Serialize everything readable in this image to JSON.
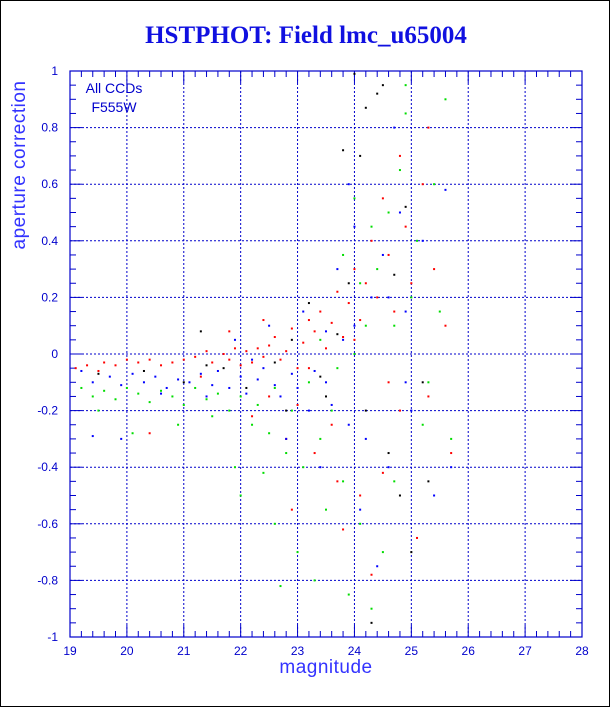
{
  "chart_data": {
    "type": "scatter",
    "title": "HSTPHOT: Field lmc_u65004",
    "xlabel": "magnitude",
    "ylabel": "aperture correction",
    "xlim": [
      19,
      28
    ],
    "ylim": [
      -1,
      1
    ],
    "x_ticks": [
      "19",
      "20",
      "21",
      "22",
      "23",
      "24",
      "25",
      "26",
      "27",
      "28"
    ],
    "y_ticks": [
      "-1",
      "-0.8",
      "-0.6",
      "-0.4",
      "-0.2",
      "0",
      "0.2",
      "0.4",
      "0.6",
      "0.8",
      "1"
    ],
    "annotation": [
      "All CCDs",
      "F555W"
    ],
    "grid": true,
    "series": [
      {
        "color": "#ff0000",
        "points": [
          [
            19.1,
            -0.05
          ],
          [
            19.3,
            -0.04
          ],
          [
            19.5,
            -0.06
          ],
          [
            19.6,
            -0.03
          ],
          [
            19.8,
            -0.04
          ],
          [
            20.0,
            -0.02
          ],
          [
            20.2,
            -0.03
          ],
          [
            20.4,
            -0.02
          ],
          [
            20.6,
            -0.04
          ],
          [
            20.8,
            -0.03
          ],
          [
            21.0,
            -0.02
          ],
          [
            21.2,
            -0.01
          ],
          [
            21.4,
            0.01
          ],
          [
            21.5,
            -0.03
          ],
          [
            21.7,
            0.0
          ],
          [
            21.8,
            -0.02
          ],
          [
            21.9,
            0.02
          ],
          [
            22.0,
            -0.04
          ],
          [
            22.1,
            0.01
          ],
          [
            22.2,
            -0.03
          ],
          [
            22.3,
            0.02
          ],
          [
            22.4,
            -0.01
          ],
          [
            22.5,
            0.03
          ],
          [
            22.6,
            0.06
          ],
          [
            22.7,
            -0.02
          ],
          [
            22.8,
            0.01
          ],
          [
            22.9,
            0.09
          ],
          [
            23.0,
            -0.05
          ],
          [
            23.1,
            0.04
          ],
          [
            23.2,
            0.12
          ],
          [
            23.3,
            0.08
          ],
          [
            23.4,
            0.15
          ],
          [
            23.5,
            0.02
          ],
          [
            23.6,
            0.11
          ],
          [
            23.7,
            0.22
          ],
          [
            23.8,
            0.06
          ],
          [
            23.9,
            0.18
          ],
          [
            24.0,
            0.3
          ],
          [
            24.1,
            0.12
          ],
          [
            24.2,
            0.25
          ],
          [
            24.3,
            0.4
          ],
          [
            24.4,
            0.2
          ],
          [
            24.5,
            0.55
          ],
          [
            24.6,
            0.35
          ],
          [
            24.7,
            0.15
          ],
          [
            24.8,
            0.7
          ],
          [
            24.9,
            0.45
          ],
          [
            25.0,
            0.25
          ],
          [
            25.2,
            0.6
          ],
          [
            25.3,
            0.8
          ],
          [
            25.4,
            0.3
          ],
          [
            25.6,
            0.1
          ],
          [
            22.2,
            -0.22
          ],
          [
            22.8,
            -0.3
          ],
          [
            23.3,
            -0.35
          ],
          [
            23.7,
            -0.45
          ],
          [
            24.1,
            -0.5
          ],
          [
            24.5,
            -0.42
          ],
          [
            23.0,
            -0.18
          ],
          [
            22.5,
            -0.15
          ],
          [
            21.3,
            -0.08
          ],
          [
            20.4,
            -0.28
          ],
          [
            21.8,
            0.08
          ],
          [
            22.4,
            0.12
          ],
          [
            23.6,
            -0.25
          ],
          [
            24.8,
            -0.2
          ],
          [
            25.1,
            -0.65
          ],
          [
            24.3,
            -0.78
          ],
          [
            23.8,
            -0.62
          ],
          [
            22.9,
            -0.55
          ],
          [
            23.2,
            -0.05
          ],
          [
            24.0,
            0.05
          ],
          [
            24.6,
            -0.1
          ],
          [
            25.3,
            -0.15
          ],
          [
            25.7,
            -0.35
          ]
        ]
      },
      {
        "color": "#0000ff",
        "points": [
          [
            19.2,
            -0.06
          ],
          [
            19.4,
            -0.1
          ],
          [
            19.7,
            -0.08
          ],
          [
            19.9,
            -0.11
          ],
          [
            20.1,
            -0.07
          ],
          [
            20.3,
            -0.1
          ],
          [
            20.5,
            -0.08
          ],
          [
            20.7,
            -0.12
          ],
          [
            20.9,
            -0.09
          ],
          [
            21.1,
            -0.1
          ],
          [
            21.3,
            -0.07
          ],
          [
            21.5,
            -0.11
          ],
          [
            21.6,
            -0.06
          ],
          [
            21.8,
            -0.12
          ],
          [
            22.0,
            -0.08
          ],
          [
            22.1,
            -0.14
          ],
          [
            22.3,
            -0.09
          ],
          [
            22.4,
            -0.05
          ],
          [
            22.6,
            -0.11
          ],
          [
            22.7,
            -0.15
          ],
          [
            22.9,
            -0.07
          ],
          [
            23.0,
            -0.12
          ],
          [
            23.2,
            -0.2
          ],
          [
            23.3,
            -0.06
          ],
          [
            23.5,
            -0.1
          ],
          [
            23.6,
            -0.18
          ],
          [
            23.8,
            0.05
          ],
          [
            23.9,
            -0.25
          ],
          [
            24.0,
            0.1
          ],
          [
            24.2,
            -0.3
          ],
          [
            24.3,
            0.2
          ],
          [
            24.5,
            0.35
          ],
          [
            24.6,
            -0.4
          ],
          [
            24.8,
            0.5
          ],
          [
            24.9,
            0.15
          ],
          [
            25.0,
            -0.2
          ],
          [
            25.2,
            0.4
          ],
          [
            25.4,
            -0.5
          ],
          [
            25.6,
            0.58
          ],
          [
            19.4,
            -0.29
          ],
          [
            19.9,
            -0.3
          ],
          [
            21.9,
            0.05
          ],
          [
            22.5,
            0.1
          ],
          [
            23.1,
            0.15
          ],
          [
            23.7,
            0.3
          ],
          [
            24.1,
            -0.55
          ],
          [
            24.4,
            -0.75
          ],
          [
            24.7,
            0.8
          ],
          [
            23.4,
            -0.4
          ],
          [
            22.8,
            -0.3
          ],
          [
            25.7,
            -0.4
          ],
          [
            21.4,
            -0.15
          ],
          [
            20.6,
            -0.14
          ],
          [
            24.0,
            0.45
          ],
          [
            23.9,
            0.6
          ],
          [
            24.9,
            -0.1
          ],
          [
            22.2,
            -0.02
          ],
          [
            23.5,
            0.08
          ],
          [
            24.6,
            0.2
          ]
        ]
      },
      {
        "color": "#00dd00",
        "points": [
          [
            19.2,
            -0.12
          ],
          [
            19.4,
            -0.15
          ],
          [
            19.6,
            -0.13
          ],
          [
            19.8,
            -0.16
          ],
          [
            20.0,
            -0.12
          ],
          [
            20.2,
            -0.14
          ],
          [
            20.4,
            -0.17
          ],
          [
            20.6,
            -0.13
          ],
          [
            20.8,
            -0.15
          ],
          [
            21.0,
            -0.18
          ],
          [
            21.2,
            -0.12
          ],
          [
            21.4,
            -0.16
          ],
          [
            21.6,
            -0.14
          ],
          [
            21.8,
            -0.2
          ],
          [
            22.0,
            -0.15
          ],
          [
            22.2,
            -0.25
          ],
          [
            22.3,
            -0.18
          ],
          [
            22.5,
            -0.28
          ],
          [
            22.6,
            -0.12
          ],
          [
            22.8,
            -0.35
          ],
          [
            22.9,
            -0.2
          ],
          [
            23.1,
            -0.4
          ],
          [
            23.2,
            -0.1
          ],
          [
            23.4,
            -0.3
          ],
          [
            23.5,
            -0.55
          ],
          [
            23.7,
            -0.05
          ],
          [
            23.8,
            -0.45
          ],
          [
            24.0,
            0.0
          ],
          [
            24.1,
            -0.6
          ],
          [
            24.2,
            0.1
          ],
          [
            24.4,
            0.3
          ],
          [
            24.5,
            -0.7
          ],
          [
            24.6,
            0.5
          ],
          [
            24.7,
            0.1
          ],
          [
            24.8,
            0.65
          ],
          [
            25.0,
            0.2
          ],
          [
            25.1,
            0.4
          ],
          [
            25.3,
            -0.1
          ],
          [
            25.5,
            0.15
          ],
          [
            25.6,
            0.9
          ],
          [
            25.4,
            0.6
          ],
          [
            24.9,
            0.95
          ],
          [
            22.0,
            -0.5
          ],
          [
            21.9,
            -0.4
          ],
          [
            22.6,
            -0.6
          ],
          [
            23.0,
            -0.7
          ],
          [
            23.3,
            -0.8
          ],
          [
            23.9,
            -0.85
          ],
          [
            24.3,
            -0.9
          ],
          [
            22.7,
            -0.82
          ],
          [
            23.6,
            -0.2
          ],
          [
            23.4,
            0.05
          ],
          [
            24.1,
            0.25
          ],
          [
            24.3,
            0.45
          ],
          [
            24.9,
            0.85
          ],
          [
            25.2,
            -0.25
          ],
          [
            24.7,
            -0.45
          ],
          [
            21.5,
            -0.22
          ],
          [
            20.9,
            -0.25
          ],
          [
            20.1,
            -0.28
          ],
          [
            19.5,
            -0.2
          ],
          [
            22.4,
            -0.42
          ],
          [
            23.8,
            0.35
          ],
          [
            24.0,
            0.55
          ],
          [
            25.7,
            -0.3
          ]
        ]
      },
      {
        "color": "#000000",
        "points": [
          [
            19.5,
            -0.07
          ],
          [
            20.3,
            -0.06
          ],
          [
            21.0,
            -0.1
          ],
          [
            21.3,
            0.08
          ],
          [
            21.7,
            -0.05
          ],
          [
            22.1,
            -0.12
          ],
          [
            22.6,
            -0.03
          ],
          [
            22.9,
            0.05
          ],
          [
            23.2,
            0.18
          ],
          [
            23.5,
            -0.15
          ],
          [
            23.7,
            0.07
          ],
          [
            23.9,
            0.25
          ],
          [
            24.1,
            0.7
          ],
          [
            24.2,
            -0.2
          ],
          [
            24.4,
            0.92
          ],
          [
            24.6,
            -0.35
          ],
          [
            24.7,
            0.28
          ],
          [
            24.9,
            0.52
          ],
          [
            25.0,
            -0.7
          ],
          [
            25.2,
            -0.1
          ],
          [
            24.2,
            0.87
          ],
          [
            24.0,
            0.99
          ],
          [
            23.8,
            0.72
          ],
          [
            24.5,
            0.95
          ],
          [
            24.8,
            -0.5
          ],
          [
            23.4,
            -0.08
          ],
          [
            22.8,
            -0.2
          ],
          [
            21.4,
            -0.04
          ],
          [
            25.3,
            -0.45
          ],
          [
            24.3,
            -0.95
          ]
        ]
      }
    ]
  }
}
